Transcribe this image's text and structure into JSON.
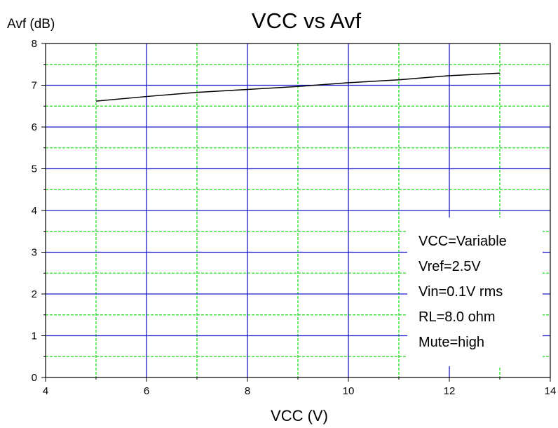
{
  "chart_data": {
    "type": "line",
    "title": "VCC vs Avf",
    "xlabel": "VCC (V)",
    "ylabel": "Avf (dB)",
    "xlim": [
      4,
      14
    ],
    "ylim": [
      0,
      8
    ],
    "x_ticks": [
      "4",
      "6",
      "8",
      "10",
      "12",
      "14"
    ],
    "y_ticks": [
      "0",
      "1",
      "2",
      "3",
      "4",
      "5",
      "6",
      "7",
      "8"
    ],
    "grid": true,
    "series": [
      {
        "x": [
          5,
          6,
          7,
          8,
          9,
          10,
          11,
          12,
          13
        ],
        "values": [
          6.62,
          6.73,
          6.83,
          6.9,
          6.97,
          7.06,
          7.13,
          7.23,
          7.29
        ]
      }
    ],
    "annotations": [
      "VCC=Variable",
      "Vref=2.5V",
      "Vin=0.1V rms",
      "RL=8.0 ohm",
      "Mute=high"
    ],
    "colors": {
      "major_grid": "#1a1acc",
      "minor_grid": "#22dd22",
      "line": "#000000"
    }
  }
}
